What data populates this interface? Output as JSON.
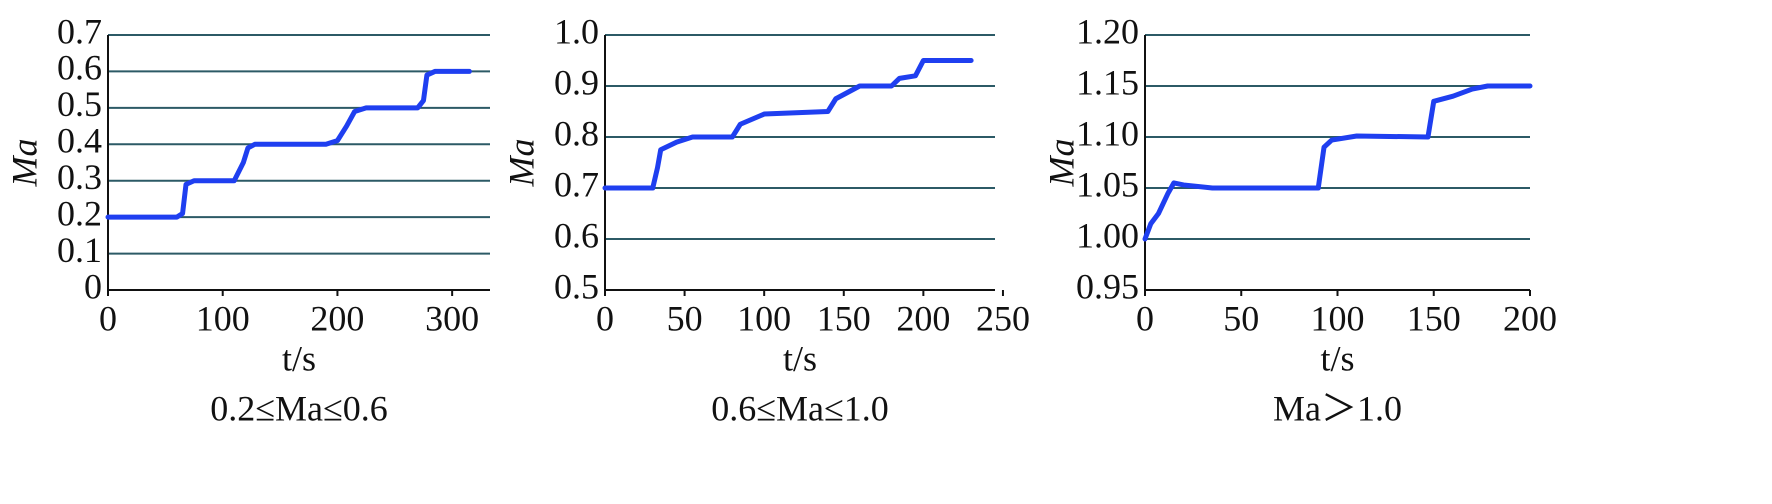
{
  "chart_data": [
    {
      "type": "line",
      "caption": "0.2≤Ma≤0.6",
      "xlabel": "t/s",
      "ylabel": "Ma",
      "color": "#1f3ff0",
      "grid": true,
      "xlim": [
        0,
        333
      ],
      "xticks": [
        0,
        100,
        200,
        300
      ],
      "ylim": [
        0,
        0.7
      ],
      "yticks": [
        0,
        0.1,
        0.2,
        0.3,
        0.4,
        0.5,
        0.6,
        0.7
      ],
      "x": [
        0,
        60,
        65,
        68,
        75,
        110,
        118,
        122,
        128,
        190,
        200,
        208,
        215,
        225,
        270,
        275,
        278,
        285,
        315
      ],
      "values": [
        0.2,
        0.2,
        0.21,
        0.29,
        0.3,
        0.3,
        0.35,
        0.39,
        0.4,
        0.4,
        0.41,
        0.45,
        0.49,
        0.5,
        0.5,
        0.52,
        0.59,
        0.6,
        0.6
      ]
    },
    {
      "type": "line",
      "caption": "0.6≤Ma≤1.0",
      "xlabel": "t/s",
      "ylabel": "Ma",
      "color": "#1f3ff0",
      "grid": true,
      "xlim": [
        0,
        245
      ],
      "xticks": [
        0,
        50,
        100,
        150,
        200,
        250
      ],
      "ylim": [
        0.5,
        1.0
      ],
      "yticks": [
        0.5,
        0.6,
        0.7,
        0.8,
        0.9,
        {
          "value": 1.0,
          "label": "1.0"
        }
      ],
      "x": [
        0,
        30,
        33,
        35,
        45,
        55,
        80,
        85,
        100,
        140,
        145,
        160,
        180,
        185,
        195,
        200,
        230
      ],
      "values": [
        0.7,
        0.7,
        0.74,
        0.775,
        0.79,
        0.8,
        0.8,
        0.825,
        0.845,
        0.85,
        0.875,
        0.9,
        0.9,
        0.915,
        0.92,
        0.95,
        0.95
      ]
    },
    {
      "type": "line",
      "caption": "Ma＞1.0",
      "xlabel": "t/s",
      "ylabel": "Ma",
      "color": "#1f3ff0",
      "grid": true,
      "xlim": [
        0,
        200
      ],
      "xticks": [
        0,
        50,
        100,
        150,
        200
      ],
      "ylim": [
        0.95,
        1.2
      ],
      "yticks": [
        0.95,
        {
          "value": 1.0,
          "label": "1.00"
        },
        1.05,
        {
          "value": 1.1,
          "label": "1.10"
        },
        1.15,
        {
          "value": 1.2,
          "label": "1.20"
        }
      ],
      "x": [
        0,
        3,
        7,
        12,
        15,
        20,
        35,
        90,
        93,
        97,
        110,
        147,
        150,
        160,
        170,
        178,
        200
      ],
      "values": [
        1.0,
        1.015,
        1.025,
        1.045,
        1.055,
        1.053,
        1.05,
        1.05,
        1.09,
        1.097,
        1.101,
        1.1,
        1.135,
        1.14,
        1.147,
        1.15,
        1.15
      ]
    }
  ]
}
